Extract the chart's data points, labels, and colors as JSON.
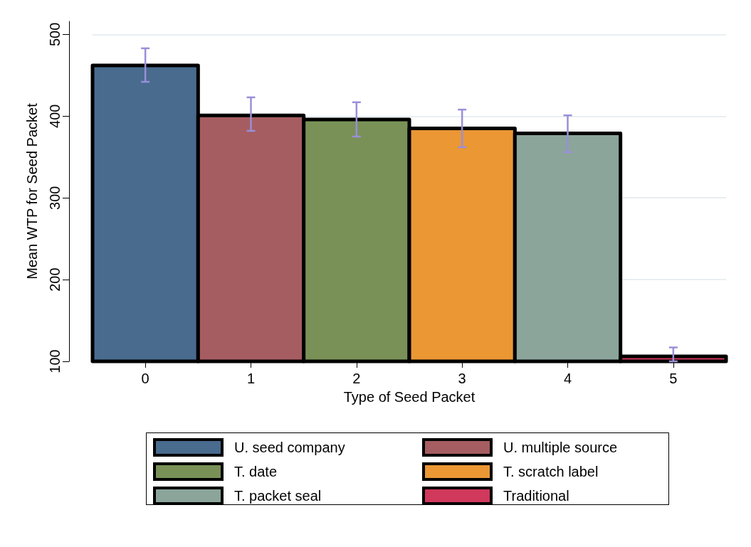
{
  "chart_data": {
    "type": "bar",
    "xlabel": "Type of Seed Packet",
    "ylabel": "Mean WTP for Seed Packet",
    "categories": [
      "0",
      "1",
      "2",
      "3",
      "4",
      "5"
    ],
    "series": [
      {
        "name": "U. seed company",
        "color": "#486b8e",
        "values": [
          462,
          null,
          null,
          null,
          null,
          null
        ],
        "errors": [
          [
            442,
            483
          ],
          null,
          null,
          null,
          null,
          null
        ]
      },
      {
        "name": "U. multiple source",
        "color": "#a65d61",
        "values": [
          null,
          401,
          null,
          null,
          null,
          null
        ],
        "errors": [
          null,
          [
            382,
            423
          ],
          null,
          null,
          null,
          null
        ]
      },
      {
        "name": "T. date",
        "color": "#799157",
        "values": [
          null,
          null,
          396,
          null,
          null,
          null
        ],
        "errors": [
          null,
          null,
          [
            375,
            417
          ],
          null,
          null,
          null
        ]
      },
      {
        "name": "T. scratch label",
        "color": "#ea9734",
        "values": [
          null,
          null,
          null,
          385,
          null,
          null
        ],
        "errors": [
          null,
          null,
          null,
          [
            362,
            408
          ],
          null,
          null
        ]
      },
      {
        "name": "T. packet seal",
        "color": "#8ba59b",
        "values": [
          null,
          null,
          null,
          null,
          379,
          null
        ],
        "errors": [
          null,
          null,
          null,
          null,
          [
            356,
            401
          ],
          null
        ]
      },
      {
        "name": "Traditional",
        "color": "#d0385c",
        "values": [
          null,
          null,
          null,
          null,
          null,
          106
        ],
        "errors": [
          null,
          null,
          null,
          null,
          null,
          [
            100,
            117
          ]
        ]
      }
    ],
    "ylim": [
      100,
      516
    ],
    "yticks": [
      100,
      200,
      300,
      400,
      500
    ],
    "grid": "y",
    "legend": "bottom"
  }
}
